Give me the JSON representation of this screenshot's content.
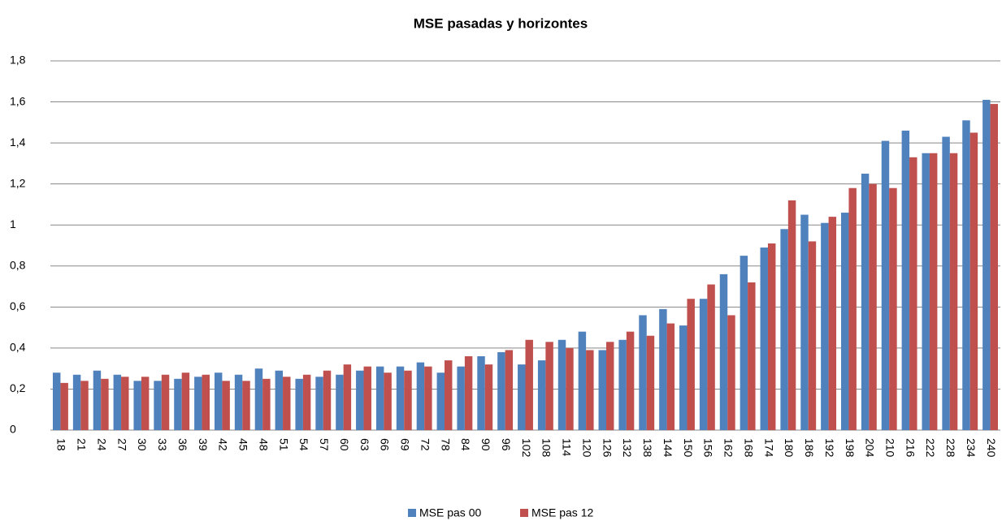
{
  "chart_data": {
    "type": "bar",
    "title": "MSE pasadas y horizontes",
    "categories": [
      "18",
      "21",
      "24",
      "27",
      "30",
      "33",
      "36",
      "39",
      "42",
      "45",
      "48",
      "51",
      "54",
      "57",
      "60",
      "63",
      "66",
      "69",
      "72",
      "78",
      "84",
      "90",
      "96",
      "102",
      "108",
      "114",
      "120",
      "126",
      "132",
      "138",
      "144",
      "150",
      "156",
      "162",
      "168",
      "174",
      "180",
      "186",
      "192",
      "198",
      "204",
      "210",
      "216",
      "222",
      "228",
      "234",
      "240"
    ],
    "series": [
      {
        "name": "MSE pas 00",
        "color": "#4f81bd",
        "values": [
          0.28,
          0.27,
          0.29,
          0.27,
          0.24,
          0.24,
          0.25,
          0.26,
          0.28,
          0.27,
          0.3,
          0.29,
          0.25,
          0.26,
          0.27,
          0.29,
          0.31,
          0.31,
          0.33,
          0.28,
          0.31,
          0.36,
          0.38,
          0.32,
          0.34,
          0.44,
          0.48,
          0.39,
          0.44,
          0.56,
          0.59,
          0.51,
          0.64,
          0.76,
          0.85,
          0.89,
          0.98,
          1.05,
          1.01,
          1.06,
          1.25,
          1.41,
          1.46,
          1.35,
          1.43,
          1.51,
          1.61
        ]
      },
      {
        "name": "MSE pas 12",
        "color": "#c0504d",
        "values": [
          0.23,
          0.24,
          0.25,
          0.26,
          0.26,
          0.27,
          0.28,
          0.27,
          0.24,
          0.24,
          0.25,
          0.26,
          0.27,
          0.29,
          0.32,
          0.31,
          0.28,
          0.29,
          0.31,
          0.34,
          0.36,
          0.32,
          0.39,
          0.44,
          0.43,
          0.4,
          0.39,
          0.43,
          0.48,
          0.46,
          0.52,
          0.64,
          0.71,
          0.56,
          0.72,
          0.91,
          1.12,
          0.92,
          1.04,
          1.18,
          1.2,
          1.18,
          1.33,
          1.35,
          1.35,
          1.45,
          1.59
        ]
      }
    ],
    "ylim": [
      0,
      1.8
    ],
    "yticks": [
      0,
      {
        "value": 0.2,
        "label": "0,2"
      },
      {
        "value": 0.4,
        "label": "0,4"
      },
      {
        "value": 0.6,
        "label": "0,6"
      },
      {
        "value": 0.8,
        "label": "0,8"
      },
      1,
      {
        "value": 1.2,
        "label": "1,2"
      },
      {
        "value": 1.4,
        "label": "1,4"
      },
      {
        "value": 1.6,
        "label": "1,6"
      },
      {
        "value": 1.8,
        "label": "1,8"
      }
    ],
    "grid": true,
    "legend": "bottom"
  }
}
